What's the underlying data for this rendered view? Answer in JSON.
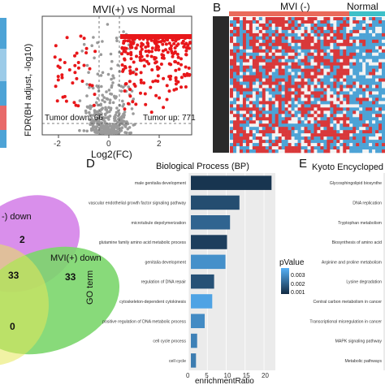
{
  "panels": {
    "volcano": {
      "title": "MVI(+) vs Normal",
      "xlabel": "Log2(FC)",
      "ylabel": "FDR(BH adjust, -log10)",
      "x_ticks": [
        "-2",
        "0",
        "2"
      ],
      "down_label": "Tumor down: 66",
      "up_label": "Tumor up: 771",
      "colors": {
        "up": "#e8171a",
        "down": "#e8171a",
        "ns": "#9a9a9a"
      }
    },
    "heatmap": {
      "letter": "B",
      "group1": "MVI (-)",
      "group2": "Normal",
      "colors": {
        "high": "#d9383a",
        "low": "#4da3d6",
        "mid": "#f3f3f3",
        "bar": "#e96a5a"
      }
    },
    "venn": {
      "label_top": "-) down",
      "label_right": "MVI(+) down",
      "counts": [
        "2",
        "33",
        "33",
        "0"
      ],
      "colors": {
        "violet": "#d27be8",
        "green": "#7bd66b",
        "yellow": "#e6e85a"
      }
    },
    "go_bp": {
      "letter": "D",
      "title": "Biological Process (BP)",
      "ylabel": "GO term",
      "xlabel": "enrichmentRatio",
      "x_ticks": [
        "0",
        "5",
        "10",
        "15",
        "20"
      ],
      "legend_title": "pValue",
      "legend_ticks": [
        "0.003",
        "0.002",
        "0.001"
      ]
    },
    "kegg": {
      "letter": "E",
      "title": "Kyoto Encycloped",
      "terms": [
        "Glycosphingolipid biosynthe",
        "DNA replication",
        "Tryptophan metabolism",
        "Biosynthesis of amino acid",
        "Arginine and proline metabolism",
        "Lysine degradation",
        "Central carbon metabolism in cancer",
        "Transcriptional misregulation in cancer",
        "MAPK signaling pathway",
        "Metabolic pathways"
      ]
    }
  },
  "chart_data": [
    {
      "type": "bar",
      "title": "Biological Process (BP)",
      "orientation": "horizontal",
      "categories": [
        "male genitalia development",
        "vascular endothelial growth factor signaling pathway",
        "microtubule depolymerization",
        "glutamine family amino acid metabolic process",
        "genitalia development",
        "regulation of DNA repair",
        "cytoskeleton-dependent cytokinesis",
        "positive regulation of DNA metabolic process",
        "cell cycle process",
        "cell cycle"
      ],
      "values": [
        22,
        13.5,
        11,
        10.2,
        9.8,
        6.8,
        6.3,
        4.3,
        2.3,
        2.0
      ],
      "pvalues": [
        0.0006,
        0.0011,
        0.0016,
        0.0008,
        0.0025,
        0.0012,
        0.0029,
        0.0024,
        0.0022,
        0.0021
      ],
      "xlabel": "enrichmentRatio",
      "ylabel": "GO term",
      "xlim": [
        0,
        23
      ],
      "legend": {
        "title": "pValue",
        "range": [
          0.0004,
          0.0032
        ],
        "placement": "right"
      },
      "colors": {
        "low_p": "#132b43",
        "high_p": "#56b1f7"
      }
    }
  ]
}
